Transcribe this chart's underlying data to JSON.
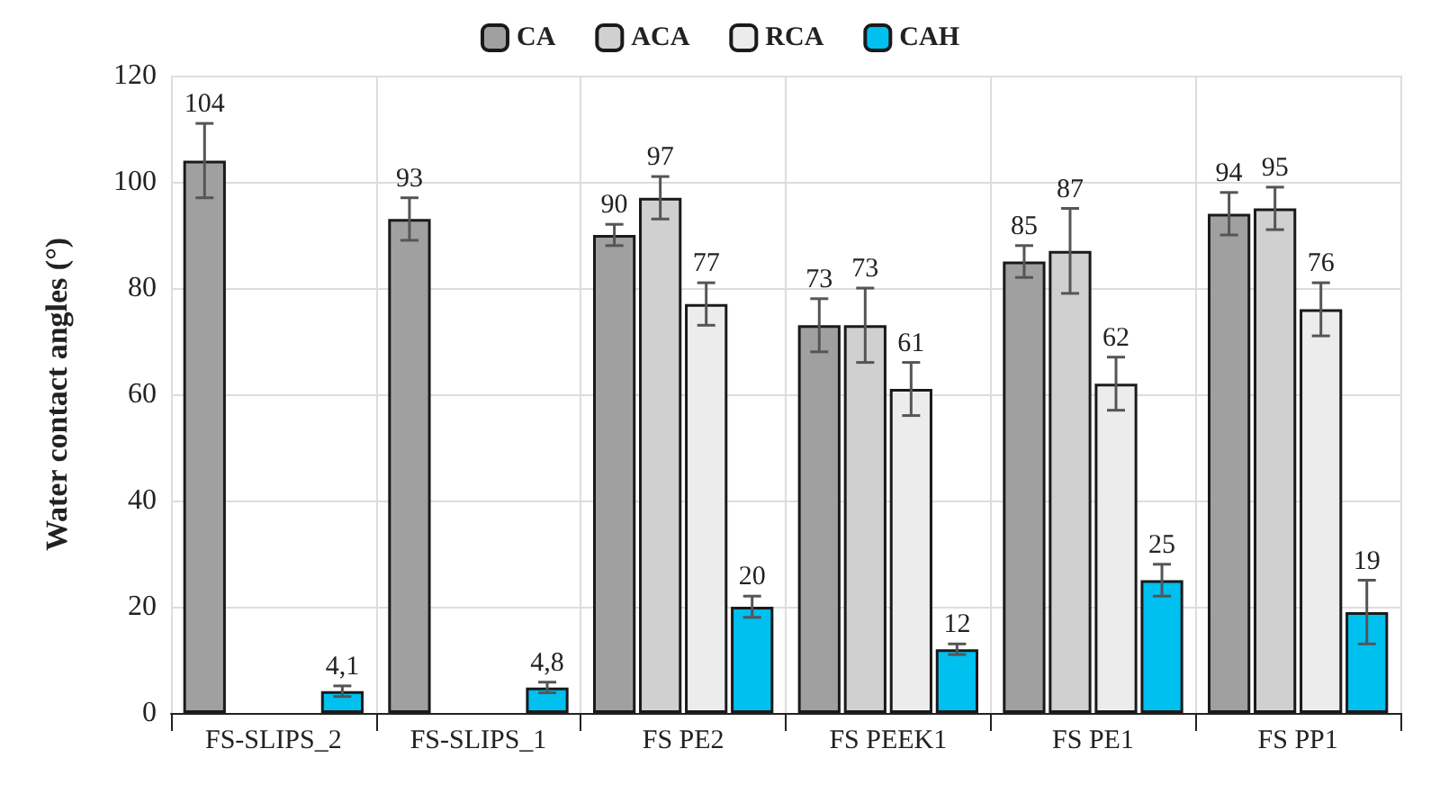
{
  "chart_data": {
    "type": "bar",
    "ylabel": "Water contact angles (°)",
    "categories": [
      "FS-SLIPS_2",
      "FS-SLIPS_1",
      "FS PE2",
      "FS PEEK1",
      "FS PE1",
      "FS PP1"
    ],
    "series": [
      {
        "name": "CA",
        "color": "#a0a0a0",
        "values": [
          104,
          93,
          90,
          73,
          85,
          94
        ],
        "errors": [
          7,
          4,
          2,
          5,
          3,
          4
        ],
        "value_labels": [
          "104",
          "93",
          "90",
          "73",
          "85",
          "94"
        ]
      },
      {
        "name": "ACA",
        "color": "#d0d0d0",
        "values": [
          null,
          null,
          97,
          73,
          87,
          95
        ],
        "errors": [
          null,
          null,
          4,
          7,
          8,
          4
        ],
        "value_labels": [
          null,
          null,
          "97",
          "73",
          "87",
          "95"
        ]
      },
      {
        "name": "RCA",
        "color": "#ececec",
        "values": [
          null,
          null,
          77,
          61,
          62,
          76
        ],
        "errors": [
          null,
          null,
          4,
          5,
          5,
          5
        ],
        "value_labels": [
          null,
          null,
          "77",
          "61",
          "62",
          "76"
        ]
      },
      {
        "name": "CAH",
        "color": "#00c0ef",
        "values": [
          4.1,
          4.8,
          20,
          12,
          25,
          19
        ],
        "errors": [
          1,
          1,
          2,
          1,
          3,
          6
        ],
        "value_labels": [
          "4,1",
          "4,8",
          "20",
          "12",
          "25",
          "19"
        ]
      }
    ],
    "ylim": [
      0,
      120
    ],
    "yticks": [
      0,
      20,
      40,
      60,
      80,
      100,
      120
    ],
    "grid": true,
    "legend": "top"
  }
}
